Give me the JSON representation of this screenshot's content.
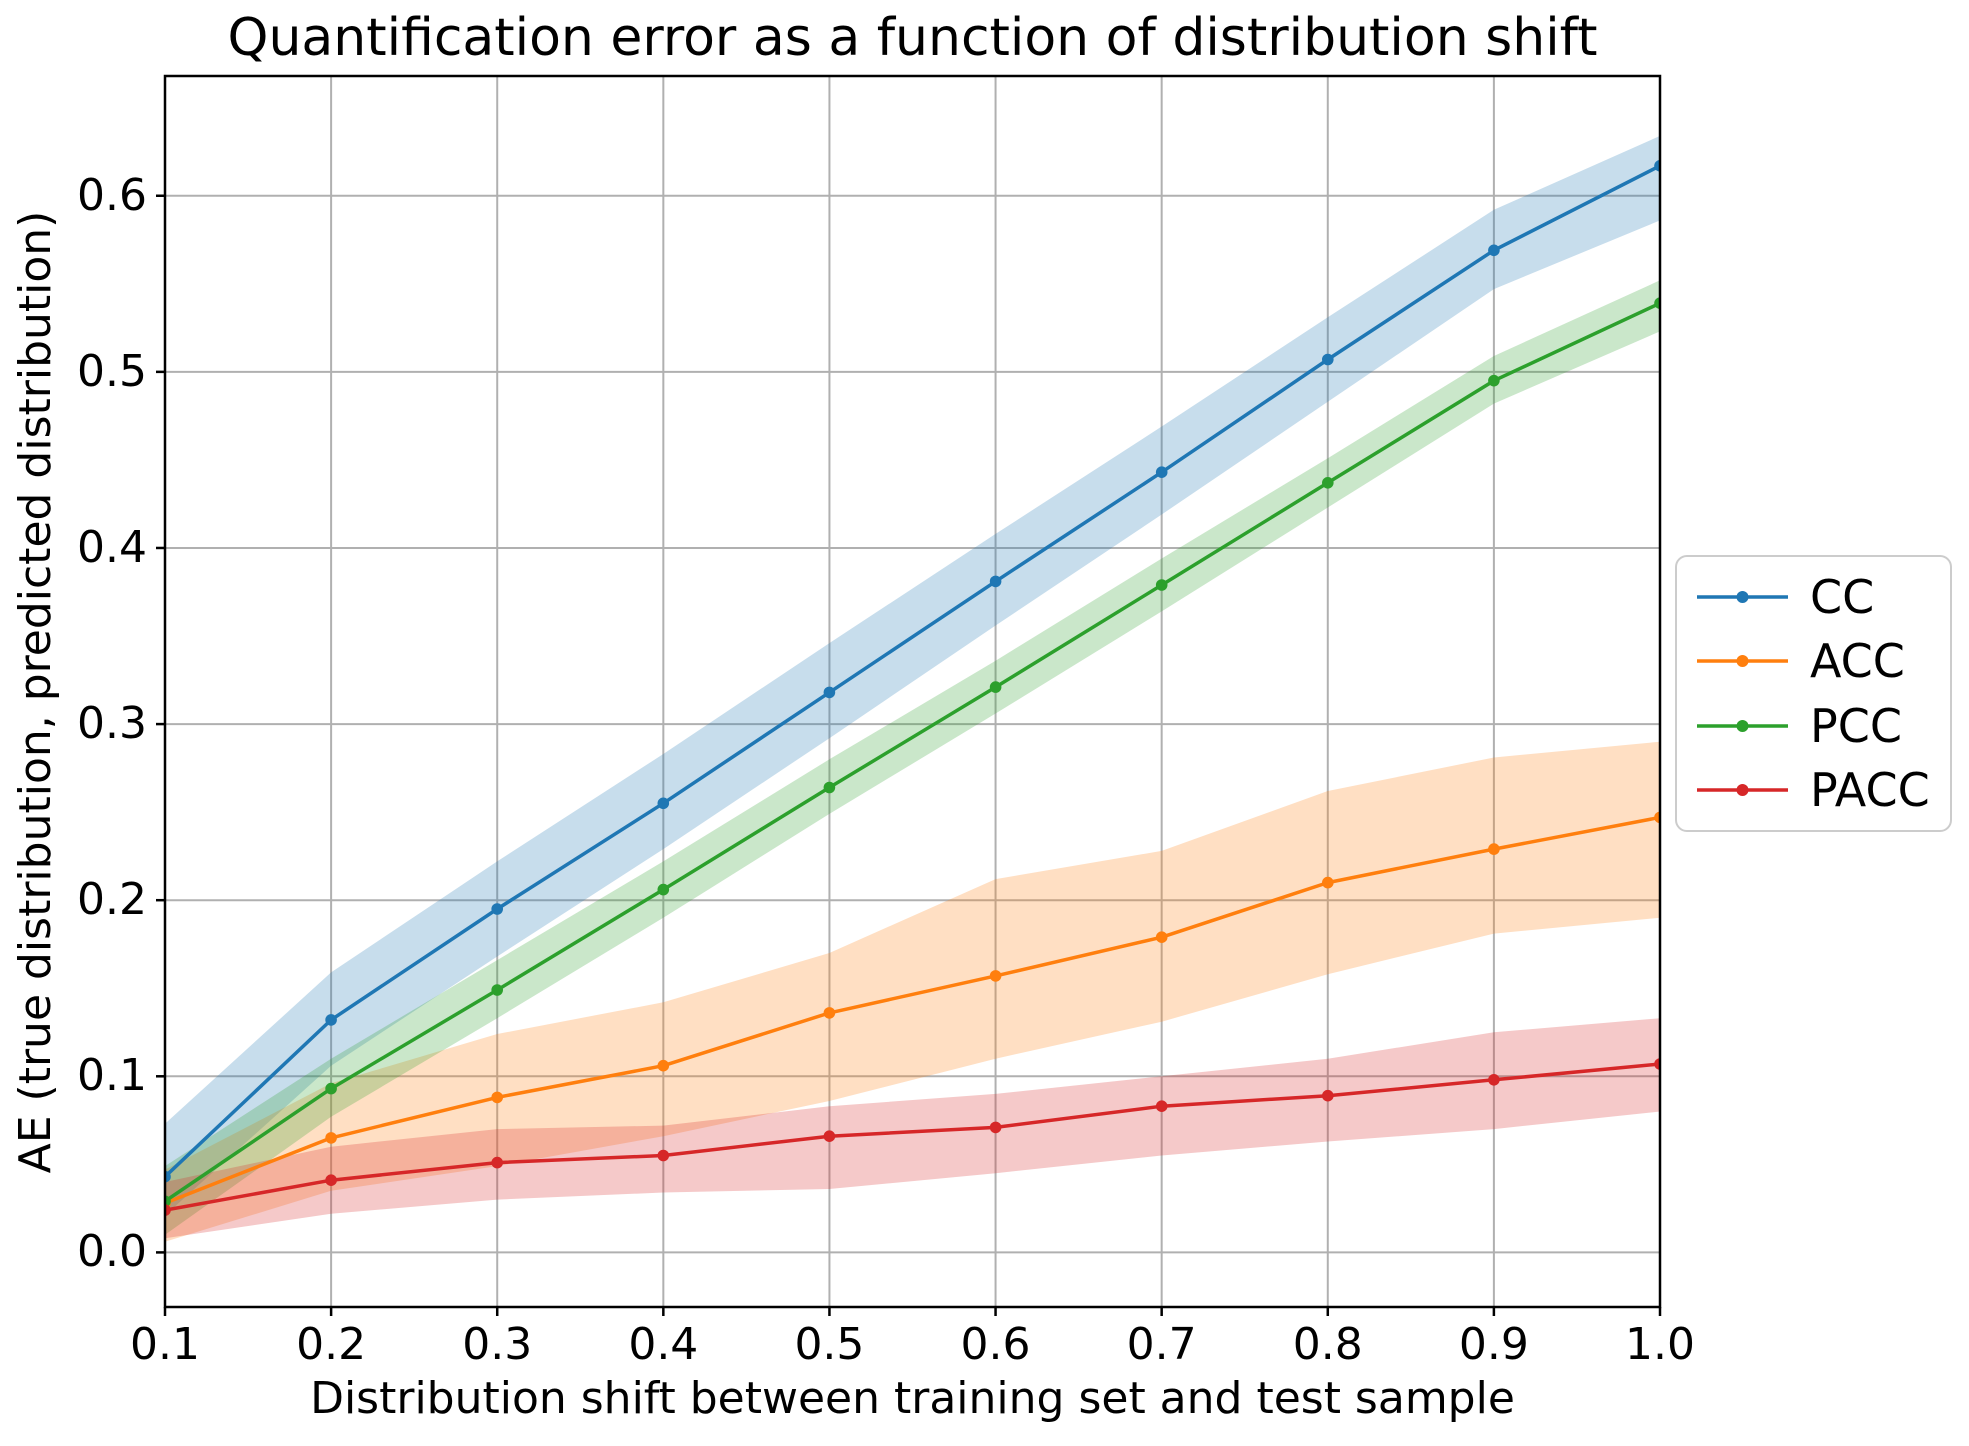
{
  "title": "Quantification error as a function of distribution shift",
  "axes": {
    "xlabel": "Distribution shift between training set and test sample",
    "ylabel": "AE (true distribution, predicted distribution)"
  },
  "legend": {
    "entries": [
      "CC",
      "ACC",
      "PCC",
      "PACC"
    ]
  },
  "chart_data": {
    "type": "line",
    "title": "Quantification error as a function of distribution shift",
    "xlabel": "Distribution shift between training set and test sample",
    "ylabel": "AE (true distribution, predicted distribution)",
    "x": [
      0.1,
      0.2,
      0.3,
      0.4,
      0.5,
      0.6,
      0.7,
      0.8,
      0.9,
      1.0
    ],
    "xtick_labels": [
      "0.1",
      "0.2",
      "0.3",
      "0.4",
      "0.5",
      "0.6",
      "0.7",
      "0.8",
      "0.9",
      "1.0"
    ],
    "ytick_values": [
      0.0,
      0.1,
      0.2,
      0.3,
      0.4,
      0.5,
      0.6
    ],
    "ytick_labels": [
      "0.0",
      "0.1",
      "0.2",
      "0.3",
      "0.4",
      "0.5",
      "0.6"
    ],
    "xlim": [
      0.1,
      1.0
    ],
    "ylim": [
      -0.031,
      0.668
    ],
    "grid": true,
    "grid_color": "#b0b0b0",
    "background": "#ffffff",
    "band_opacity": 0.25,
    "legend_position": "outside-right",
    "series": [
      {
        "name": "CC",
        "color": "#1f77b4",
        "values": [
          0.043,
          0.132,
          0.195,
          0.255,
          0.318,
          0.381,
          0.443,
          0.507,
          0.569,
          0.617
        ],
        "band_upper": [
          0.073,
          0.159,
          0.222,
          0.283,
          0.346,
          0.408,
          0.469,
          0.531,
          0.592,
          0.634
        ],
        "band_lower": [
          0.021,
          0.106,
          0.168,
          0.229,
          0.292,
          0.356,
          0.419,
          0.483,
          0.547,
          0.586
        ]
      },
      {
        "name": "ACC",
        "color": "#ff7f0e",
        "values": [
          0.028,
          0.065,
          0.088,
          0.106,
          0.136,
          0.157,
          0.179,
          0.21,
          0.229,
          0.247
        ],
        "band_upper": [
          0.047,
          0.096,
          0.124,
          0.142,
          0.17,
          0.212,
          0.228,
          0.262,
          0.281,
          0.29
        ],
        "band_lower": [
          0.006,
          0.035,
          0.049,
          0.066,
          0.086,
          0.11,
          0.131,
          0.158,
          0.181,
          0.19
        ]
      },
      {
        "name": "PCC",
        "color": "#2ca02c",
        "values": [
          0.029,
          0.093,
          0.149,
          0.206,
          0.264,
          0.321,
          0.379,
          0.437,
          0.495,
          0.539
        ],
        "band_upper": [
          0.049,
          0.11,
          0.166,
          0.222,
          0.28,
          0.336,
          0.394,
          0.451,
          0.509,
          0.552
        ],
        "band_lower": [
          0.01,
          0.077,
          0.133,
          0.19,
          0.249,
          0.306,
          0.364,
          0.423,
          0.482,
          0.523
        ]
      },
      {
        "name": "PACC",
        "color": "#d62728",
        "values": [
          0.024,
          0.041,
          0.051,
          0.055,
          0.066,
          0.071,
          0.083,
          0.089,
          0.098,
          0.107
        ],
        "band_upper": [
          0.04,
          0.06,
          0.07,
          0.072,
          0.083,
          0.09,
          0.1,
          0.11,
          0.125,
          0.133
        ],
        "band_lower": [
          0.008,
          0.022,
          0.03,
          0.034,
          0.036,
          0.045,
          0.055,
          0.063,
          0.07,
          0.08
        ]
      }
    ]
  }
}
